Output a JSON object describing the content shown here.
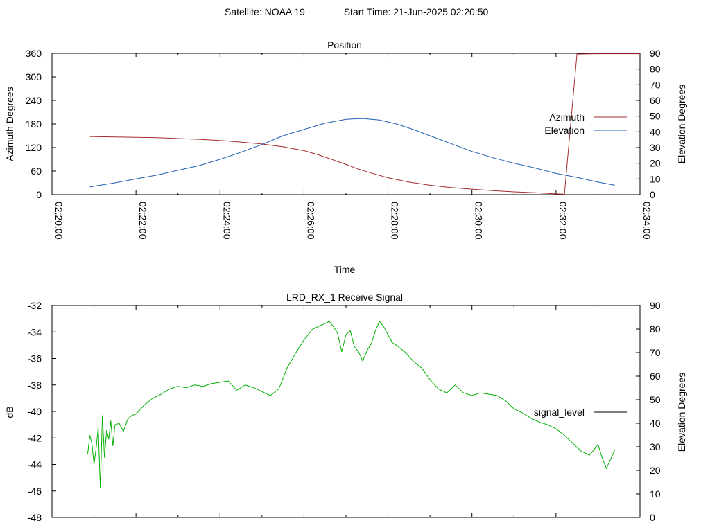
{
  "header": {
    "satellite": "Satellite: NOAA 19",
    "start_time": "Start Time: 21-Jun-2025 02:20:50"
  },
  "chart_data": [
    {
      "type": "line",
      "title": "Position",
      "xlabel": "Time",
      "ylabel": "Azimuth Degrees",
      "y2label": "Elevation Degrees",
      "x_unit": "minutes after 02:20:00",
      "xlim": [
        0,
        14
      ],
      "xticks": [
        0,
        2,
        4,
        6,
        8,
        10,
        12,
        14
      ],
      "xtick_labels": [
        "02:20:00",
        "02:22:00",
        "02:24:00",
        "02:26:00",
        "02:28:00",
        "02:30:00",
        "02:32:00",
        "02:34:00"
      ],
      "ylim": [
        0,
        360
      ],
      "yticks": [
        0,
        60,
        120,
        180,
        240,
        300,
        360
      ],
      "y2lim": [
        0,
        90
      ],
      "y2ticks": [
        0,
        10,
        20,
        30,
        40,
        50,
        60,
        70,
        80,
        90
      ],
      "grid": false,
      "legend": "right",
      "series": [
        {
          "name": "Azimuth",
          "axis": "y1",
          "color": "#a52a2a",
          "x": [
            0.9,
            1.5,
            2.0,
            2.5,
            3.0,
            3.5,
            4.0,
            4.5,
            5.0,
            5.5,
            6.0,
            6.3,
            6.6,
            7.0,
            7.3,
            7.6,
            8.0,
            8.5,
            9.0,
            9.5,
            10.0,
            10.5,
            11.0,
            11.5,
            12.0,
            12.2,
            12.5,
            12.9,
            13.5,
            14.0
          ],
          "y": [
            148,
            147,
            146,
            145,
            143,
            141,
            138,
            134,
            129,
            122,
            112,
            103,
            92,
            77,
            65,
            55,
            43,
            32,
            24,
            18,
            14,
            10,
            7,
            5,
            2,
            1,
            358,
            359,
            359,
            359
          ]
        },
        {
          "name": "Elevation",
          "axis": "y2",
          "color": "#1f5fb4",
          "x": [
            0.9,
            1.5,
            2.0,
            2.5,
            3.0,
            3.5,
            4.0,
            4.5,
            5.0,
            5.5,
            6.0,
            6.5,
            7.0,
            7.4,
            7.8,
            8.2,
            8.6,
            9.0,
            9.5,
            10.0,
            10.5,
            11.0,
            11.5,
            12.0,
            12.5,
            13.0,
            13.4
          ],
          "y": [
            5,
            7.5,
            10,
            12.5,
            15.5,
            18.5,
            22.5,
            27,
            32,
            37.5,
            41.5,
            45.5,
            48,
            48.5,
            47.5,
            45,
            41.5,
            37.5,
            32.5,
            27.5,
            23.5,
            20,
            17,
            13.5,
            11,
            8,
            6
          ]
        }
      ]
    },
    {
      "type": "line",
      "title": "LRD_RX_1 Receive Signal",
      "xlabel": "",
      "ylabel": "dB",
      "y2label": "Elevation Degrees",
      "x_unit": "minutes after 02:20:00",
      "xlim": [
        0,
        14
      ],
      "xticks": [
        0,
        2,
        4,
        6,
        8,
        10,
        12,
        14
      ],
      "ylim": [
        -48,
        -32
      ],
      "yticks": [
        -48,
        -46,
        -44,
        -42,
        -40,
        -38,
        -36,
        -34,
        -32
      ],
      "y2lim": [
        0,
        90
      ],
      "y2ticks": [
        0,
        10,
        20,
        30,
        40,
        50,
        60,
        70,
        80,
        90
      ],
      "grid": false,
      "legend": "right",
      "series": [
        {
          "name": "signal_level",
          "color": "#00b000",
          "x": [
            0.85,
            0.9,
            0.95,
            1.0,
            1.05,
            1.1,
            1.15,
            1.2,
            1.25,
            1.3,
            1.35,
            1.4,
            1.45,
            1.5,
            1.6,
            1.7,
            1.8,
            1.9,
            2.0,
            2.2,
            2.4,
            2.6,
            2.8,
            3.0,
            3.2,
            3.4,
            3.6,
            3.8,
            4.0,
            4.2,
            4.4,
            4.6,
            4.8,
            5.0,
            5.2,
            5.4,
            5.6,
            5.8,
            6.0,
            6.2,
            6.4,
            6.6,
            6.7,
            6.8,
            6.9,
            7.0,
            7.1,
            7.2,
            7.3,
            7.4,
            7.5,
            7.6,
            7.7,
            7.8,
            7.9,
            8.0,
            8.1,
            8.2,
            8.4,
            8.6,
            8.8,
            9.0,
            9.2,
            9.4,
            9.6,
            9.8,
            10.0,
            10.2,
            10.4,
            10.6,
            10.8,
            11.0,
            11.2,
            11.4,
            11.6,
            11.8,
            12.0,
            12.2,
            12.4,
            12.6,
            12.8,
            13.0,
            13.1,
            13.2,
            13.3,
            13.4
          ],
          "y": [
            -43.2,
            -41.8,
            -42.4,
            -44.0,
            -42.8,
            -41.2,
            -45.8,
            -40.3,
            -43.5,
            -41.4,
            -42.1,
            -40.7,
            -42.6,
            -41.0,
            -40.9,
            -41.5,
            -40.6,
            -40.3,
            -40.2,
            -39.5,
            -39.0,
            -38.7,
            -38.3,
            -38.1,
            -38.2,
            -38.0,
            -38.1,
            -37.9,
            -37.8,
            -37.7,
            -38.4,
            -38.0,
            -38.2,
            -38.5,
            -38.8,
            -38.3,
            -36.7,
            -35.6,
            -34.6,
            -33.8,
            -33.5,
            -33.2,
            -33.6,
            -34.1,
            -35.5,
            -34.2,
            -33.9,
            -35.1,
            -35.5,
            -36.2,
            -35.4,
            -34.9,
            -33.9,
            -33.2,
            -33.6,
            -34.2,
            -34.8,
            -35.0,
            -35.5,
            -36.2,
            -36.7,
            -37.6,
            -38.3,
            -38.6,
            -38.0,
            -38.6,
            -38.8,
            -38.6,
            -38.7,
            -38.8,
            -39.2,
            -39.8,
            -40.1,
            -40.5,
            -40.8,
            -41.0,
            -41.3,
            -41.8,
            -42.4,
            -43.0,
            -43.3,
            -42.5,
            -43.5,
            -44.3,
            -43.6,
            -42.9
          ]
        }
      ]
    }
  ]
}
